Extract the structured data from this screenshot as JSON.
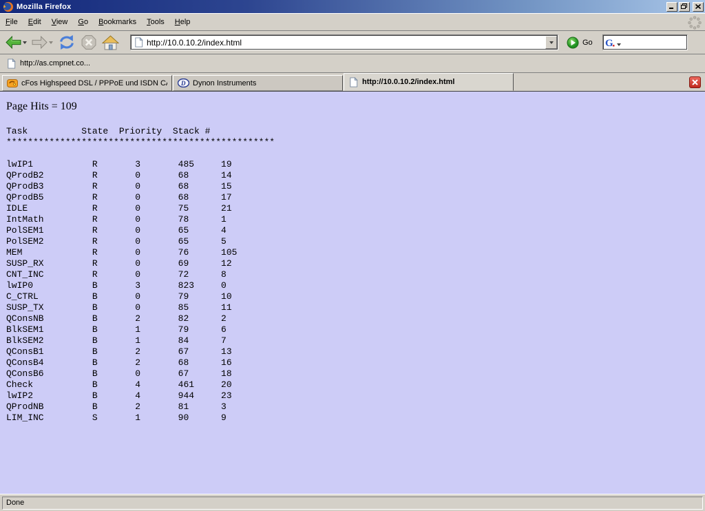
{
  "window": {
    "title": "Mozilla Firefox"
  },
  "menu_bar": {
    "items": [
      "File",
      "Edit",
      "View",
      "Go",
      "Bookmarks",
      "Tools",
      "Help"
    ]
  },
  "nav_toolbar": {
    "url_value": "http://10.0.10.2/index.html",
    "go_label": "Go"
  },
  "bookmarks_bar": {
    "items": [
      "http://as.cmpnet.co..."
    ]
  },
  "tab_bar": {
    "tabs": [
      {
        "id": "cfos",
        "label": "cFos Highspeed DSL / PPPoE und ISDN CAP...",
        "icon": "cfos-icon",
        "active": false
      },
      {
        "id": "dynon",
        "label": "Dynon Instruments",
        "icon": "dynon-icon",
        "active": false
      },
      {
        "id": "current",
        "label": "http://10.0.10.2/index.html",
        "icon": "page-icon",
        "active": true
      }
    ]
  },
  "page": {
    "hits_text": "Page Hits = 109",
    "task_table": {
      "columns": [
        "Task",
        "State",
        "Priority",
        "Stack",
        "#"
      ],
      "separator_char": "*",
      "separator_length": 50,
      "rows": [
        [
          "lwIP1",
          "R",
          "3",
          "485",
          "19"
        ],
        [
          "QProdB2",
          "R",
          "0",
          "68",
          "14"
        ],
        [
          "QProdB3",
          "R",
          "0",
          "68",
          "15"
        ],
        [
          "QProdB5",
          "R",
          "0",
          "68",
          "17"
        ],
        [
          "IDLE",
          "R",
          "0",
          "75",
          "21"
        ],
        [
          "IntMath",
          "R",
          "0",
          "78",
          "1"
        ],
        [
          "PolSEM1",
          "R",
          "0",
          "65",
          "4"
        ],
        [
          "PolSEM2",
          "R",
          "0",
          "65",
          "5"
        ],
        [
          "MEM",
          "R",
          "0",
          "76",
          "105"
        ],
        [
          "SUSP_RX",
          "R",
          "0",
          "69",
          "12"
        ],
        [
          "CNT_INC",
          "R",
          "0",
          "72",
          "8"
        ],
        [
          "lwIP0",
          "B",
          "3",
          "823",
          "0"
        ],
        [
          "C_CTRL",
          "B",
          "0",
          "79",
          "10"
        ],
        [
          "SUSP_TX",
          "B",
          "0",
          "85",
          "11"
        ],
        [
          "QConsNB",
          "B",
          "2",
          "82",
          "2"
        ],
        [
          "BlkSEM1",
          "B",
          "1",
          "79",
          "6"
        ],
        [
          "BlkSEM2",
          "B",
          "1",
          "84",
          "7"
        ],
        [
          "QConsB1",
          "B",
          "2",
          "67",
          "13"
        ],
        [
          "QConsB4",
          "B",
          "2",
          "68",
          "16"
        ],
        [
          "QConsB6",
          "B",
          "0",
          "67",
          "18"
        ],
        [
          "Check",
          "B",
          "4",
          "461",
          "20"
        ],
        [
          "lwIP2",
          "B",
          "4",
          "944",
          "23"
        ],
        [
          "QProdNB",
          "B",
          "2",
          "81",
          "3"
        ],
        [
          "LIM_INC",
          "S",
          "1",
          "90",
          "9"
        ]
      ]
    }
  },
  "status_bar": {
    "text": "Done"
  },
  "colors": {
    "content_bg": "#cdccf7",
    "chrome_bg": "#d4d0c8",
    "titlebar_start": "#13287b",
    "titlebar_end": "#a9c6e8",
    "close_tab_red": "#c02a1e",
    "back_green": "#55b43c",
    "go_green": "#2f9e28",
    "reload_blue": "#4b7fd9"
  }
}
